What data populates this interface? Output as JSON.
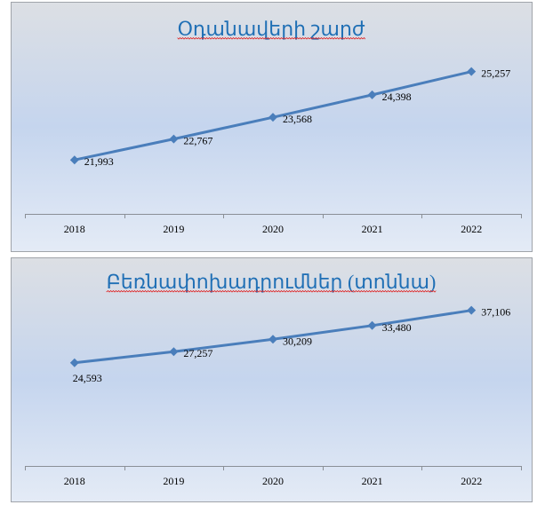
{
  "chart_data": [
    {
      "type": "line",
      "title": "Օդանավերի շարժ",
      "categories": [
        "2018",
        "2019",
        "2020",
        "2021",
        "2022"
      ],
      "values": [
        21993,
        22767,
        23568,
        24398,
        25257
      ],
      "data_labels": [
        "21,993",
        "22,767",
        "23,568",
        "24,398",
        "25,257"
      ],
      "ylim": [
        20000,
        26000
      ],
      "grid": false,
      "legend": "none",
      "line_color": "#4a7ebb",
      "title_color": "#1f6fb5"
    },
    {
      "type": "line",
      "title": "Բեռնափոխադրումներ (տոննա)",
      "categories": [
        "2018",
        "2019",
        "2020",
        "2021",
        "2022"
      ],
      "values": [
        24593,
        27257,
        30209,
        33480,
        37106
      ],
      "data_labels": [
        "24,593",
        "27,257",
        "30,209",
        "33,480",
        "37,106"
      ],
      "ylim": [
        0,
        40000
      ],
      "grid": false,
      "legend": "none",
      "line_color": "#4a7ebb",
      "title_color": "#1f6fb5"
    }
  ]
}
